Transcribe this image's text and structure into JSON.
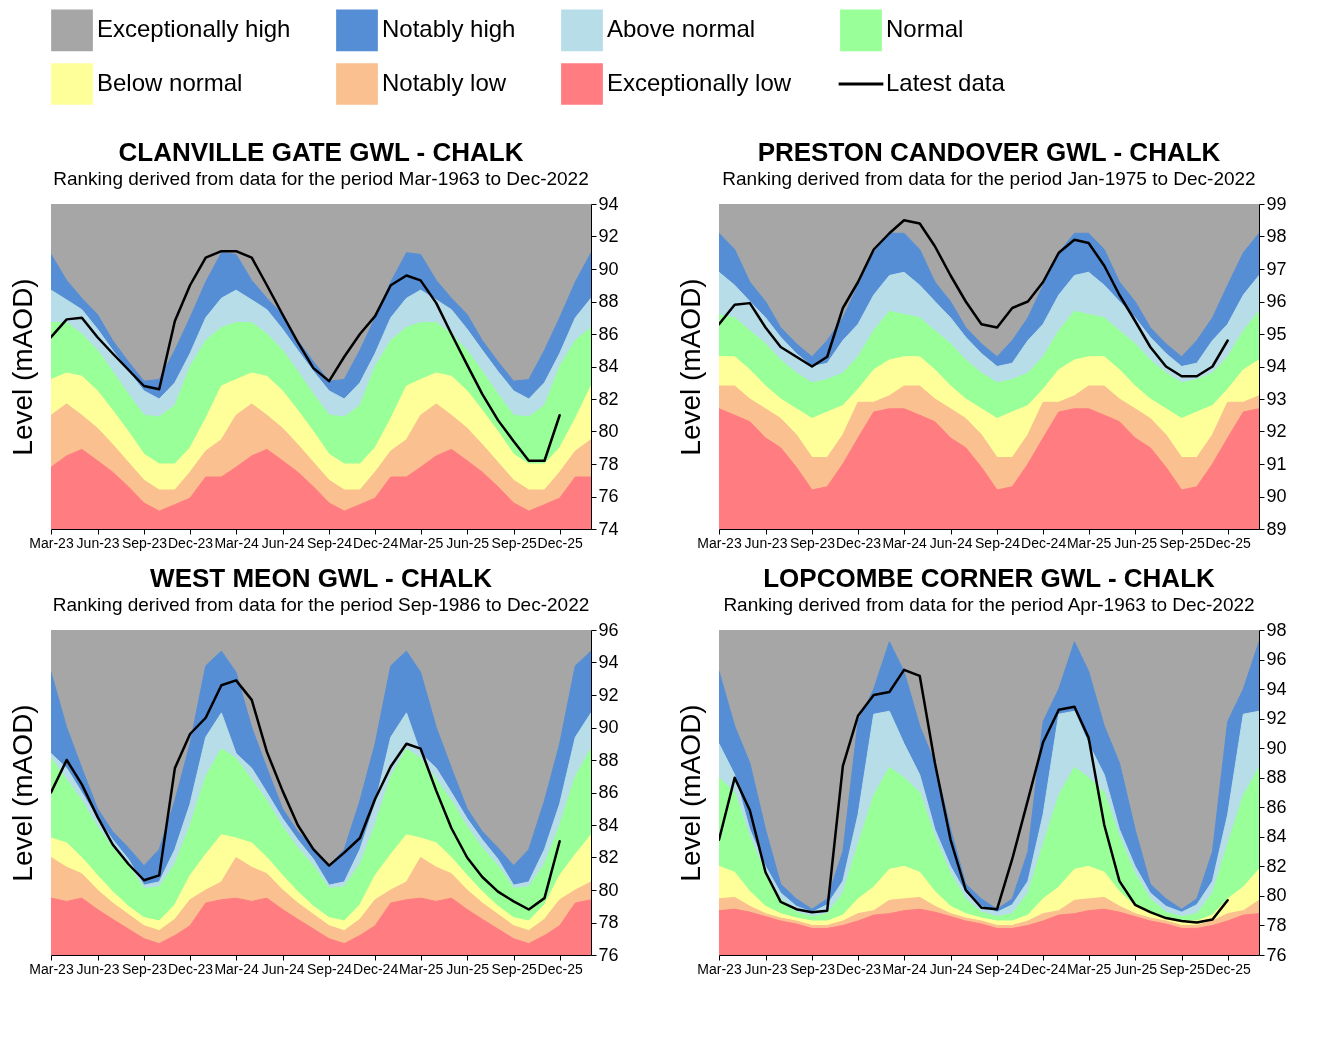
{
  "chart_data": [
    {
      "type": "area",
      "legend": "top",
      "title": "CLANVILLE GATE GWL - CHALK",
      "subtitle": "Ranking derived from data for the period Mar-1963 to Dec-2022",
      "ylabel": "Level (mAOD)",
      "x": [
        "2023-03",
        "2023-04",
        "2023-05",
        "2023-06",
        "2023-07",
        "2023-08",
        "2023-09",
        "2023-10",
        "2023-11",
        "2023-12",
        "2024-01",
        "2024-02",
        "2024-03",
        "2024-04",
        "2024-05",
        "2024-06",
        "2024-07",
        "2024-08",
        "2024-09",
        "2024-10",
        "2024-11",
        "2024-12",
        "2025-01",
        "2025-02",
        "2025-03",
        "2025-04",
        "2025-05",
        "2025-06",
        "2025-07",
        "2025-08",
        "2025-09",
        "2025-10",
        "2025-11",
        "2025-12",
        "2026-01",
        "2026-02"
      ],
      "xlim": [
        "2023-03",
        "2026-02"
      ],
      "xticks": [
        {
          "value": "2023-03",
          "label": "Mar-23"
        },
        {
          "value": "2023-06",
          "label": "Jun-23"
        },
        {
          "value": "2023-09",
          "label": "Sep-23"
        },
        {
          "value": "2023-12",
          "label": "Dec-23"
        },
        {
          "value": "2024-03",
          "label": "Mar-24"
        },
        {
          "value": "2024-06",
          "label": "Jun-24"
        },
        {
          "value": "2024-09",
          "label": "Sep-24"
        },
        {
          "value": "2024-12",
          "label": "Dec-24"
        },
        {
          "value": "2025-03",
          "label": "Mar-25"
        },
        {
          "value": "2025-06",
          "label": "Jun-25"
        },
        {
          "value": "2025-09",
          "label": "Sep-25"
        },
        {
          "value": "2025-12",
          "label": "Dec-25"
        }
      ],
      "ylim": [
        74,
        94
      ],
      "yticks": [
        74,
        76,
        78,
        80,
        82,
        84,
        86,
        88,
        90,
        92,
        94
      ],
      "series": [
        {
          "name": "Exceptionally low",
          "color": "#ff7c80",
          "values": [
            77.8,
            78.5,
            78.9,
            78.2,
            77.5,
            76.6,
            75.6,
            75.1,
            75.5,
            75.9,
            77.2,
            77.2,
            77.8,
            78.5,
            78.9,
            78.2,
            77.5,
            76.6,
            75.6,
            75.1,
            75.5,
            75.9,
            77.2,
            77.2,
            77.8,
            78.5,
            78.9,
            78.2,
            77.5,
            76.6,
            75.6,
            75.1,
            75.5,
            75.9,
            77.2,
            77.2
          ]
        },
        {
          "name": "Notably low",
          "color": "#fac090",
          "values": [
            81.0,
            81.7,
            81.0,
            80.2,
            79.2,
            78.1,
            77.0,
            76.4,
            76.4,
            77.5,
            78.8,
            79.5,
            81.0,
            81.7,
            81.0,
            80.2,
            79.2,
            78.1,
            77.0,
            76.4,
            76.4,
            77.5,
            78.8,
            79.5,
            81.0,
            81.7,
            81.0,
            80.2,
            79.2,
            78.1,
            77.0,
            76.4,
            76.4,
            77.5,
            78.8,
            79.5
          ]
        },
        {
          "name": "Below normal",
          "color": "#ffff99",
          "values": [
            83.2,
            83.6,
            83.4,
            82.5,
            81.3,
            80.0,
            78.6,
            78.0,
            78.0,
            79.0,
            80.8,
            82.8,
            83.2,
            83.6,
            83.4,
            82.5,
            81.3,
            80.0,
            78.6,
            78.0,
            78.0,
            79.0,
            80.8,
            82.8,
            83.2,
            83.6,
            83.4,
            82.5,
            81.3,
            80.0,
            78.6,
            78.0,
            78.0,
            79.0,
            80.8,
            82.8
          ]
        },
        {
          "name": "Normal",
          "color": "#99ff99",
          "values": [
            86.7,
            86.7,
            86.0,
            85.0,
            83.7,
            82.3,
            81.0,
            80.9,
            81.6,
            84.0,
            85.6,
            86.4,
            86.7,
            86.7,
            86.0,
            85.0,
            83.7,
            82.3,
            81.0,
            80.9,
            81.6,
            84.0,
            85.6,
            86.4,
            86.7,
            86.7,
            86.0,
            85.0,
            83.7,
            82.3,
            81.0,
            80.9,
            81.6,
            84.0,
            85.6,
            86.4
          ]
        },
        {
          "name": "Above normal",
          "color": "#b7dde8",
          "values": [
            88.7,
            88.1,
            87.5,
            86.3,
            85.0,
            83.7,
            82.5,
            82.0,
            83.0,
            84.8,
            87.0,
            88.2,
            88.7,
            88.1,
            87.5,
            86.3,
            85.0,
            83.7,
            82.5,
            82.0,
            83.0,
            84.8,
            87.0,
            88.2,
            88.7,
            88.1,
            87.5,
            86.3,
            85.0,
            83.7,
            82.5,
            82.0,
            83.0,
            84.8,
            87.0,
            88.2
          ]
        },
        {
          "name": "Notably high",
          "color": "#558ed5",
          "values": [
            90.9,
            89.3,
            88.2,
            87.2,
            85.6,
            84.3,
            83.1,
            83.2,
            85.0,
            87.0,
            89.2,
            91.0,
            90.9,
            89.3,
            88.2,
            87.2,
            85.6,
            84.3,
            83.1,
            83.2,
            85.0,
            87.0,
            89.2,
            91.0,
            90.9,
            89.3,
            88.2,
            87.2,
            85.6,
            84.3,
            83.1,
            83.2,
            85.0,
            87.0,
            89.2,
            91.0
          ]
        },
        {
          "name": "Exceptionally high",
          "color": "#a6a6a6",
          "values": [
            94,
            94,
            94,
            94,
            94,
            94,
            94,
            94,
            94,
            94,
            94,
            94,
            94,
            94,
            94,
            94,
            94,
            94,
            94,
            94,
            94,
            94,
            94,
            94,
            94,
            94,
            94,
            94,
            94,
            94,
            94,
            94,
            94,
            94,
            94,
            94
          ]
        },
        {
          "name": "Latest data",
          "type": "line",
          "color": "#000000",
          "x": [
            "2023-03",
            "2023-04",
            "2023-05",
            "2023-06",
            "2023-07",
            "2023-08",
            "2023-09",
            "2023-10",
            "2023-11",
            "2023-12",
            "2024-01",
            "2024-02",
            "2024-03",
            "2024-04",
            "2024-05",
            "2024-06",
            "2024-07",
            "2024-08",
            "2024-09",
            "2024-10",
            "2024-11",
            "2024-12",
            "2025-01",
            "2025-02",
            "2025-03",
            "2025-04",
            "2025-05",
            "2025-06",
            "2025-07",
            "2025-08",
            "2025-09",
            "2025-10",
            "2025-11",
            "2025-12"
          ],
          "values": [
            85.8,
            86.9,
            87.0,
            85.8,
            84.8,
            83.8,
            82.8,
            82.6,
            86.8,
            89.0,
            90.7,
            91.1,
            91.1,
            90.7,
            89.0,
            87.2,
            85.5,
            83.9,
            83.1,
            84.6,
            86.0,
            87.1,
            89.0,
            89.6,
            89.3,
            87.9,
            86.0,
            84.1,
            82.3,
            80.7,
            79.4,
            78.2,
            78.2,
            81.0
          ]
        }
      ]
    },
    {
      "type": "area",
      "title": "PRESTON CANDOVER GWL - CHALK",
      "subtitle": "Ranking derived from data for the period Jan-1975 to Dec-2022",
      "ylabel": "Level (mAOD)",
      "x": [
        "2023-03",
        "2023-04",
        "2023-05",
        "2023-06",
        "2023-07",
        "2023-08",
        "2023-09",
        "2023-10",
        "2023-11",
        "2023-12",
        "2024-01",
        "2024-02",
        "2024-03",
        "2024-04",
        "2024-05",
        "2024-06",
        "2024-07",
        "2024-08",
        "2024-09",
        "2024-10",
        "2024-11",
        "2024-12",
        "2025-01",
        "2025-02",
        "2025-03",
        "2025-04",
        "2025-05",
        "2025-06",
        "2025-07",
        "2025-08",
        "2025-09",
        "2025-10",
        "2025-11",
        "2025-12",
        "2026-01",
        "2026-02"
      ],
      "xlim": [
        "2023-03",
        "2026-02"
      ],
      "xticks": [
        {
          "value": "2023-03",
          "label": "Mar-23"
        },
        {
          "value": "2023-06",
          "label": "Jun-23"
        },
        {
          "value": "2023-09",
          "label": "Sep-23"
        },
        {
          "value": "2023-12",
          "label": "Dec-23"
        },
        {
          "value": "2024-03",
          "label": "Mar-24"
        },
        {
          "value": "2024-06",
          "label": "Jun-24"
        },
        {
          "value": "2024-09",
          "label": "Sep-24"
        },
        {
          "value": "2024-12",
          "label": "Dec-24"
        },
        {
          "value": "2025-03",
          "label": "Mar-25"
        },
        {
          "value": "2025-06",
          "label": "Jun-25"
        },
        {
          "value": "2025-09",
          "label": "Sep-25"
        },
        {
          "value": "2025-12",
          "label": "Dec-25"
        }
      ],
      "ylim": [
        89,
        99
      ],
      "yticks": [
        89,
        90,
        91,
        92,
        93,
        94,
        95,
        96,
        97,
        98,
        99
      ],
      "series": [
        {
          "name": "Exceptionally low",
          "color": "#ff7c80",
          "values": [
            92.7,
            92.5,
            92.3,
            91.8,
            91.5,
            90.9,
            90.2,
            90.3,
            91.0,
            91.8,
            92.6,
            92.7,
            92.7,
            92.5,
            92.3,
            91.8,
            91.5,
            90.9,
            90.2,
            90.3,
            91.0,
            91.8,
            92.6,
            92.7,
            92.7,
            92.5,
            92.3,
            91.8,
            91.5,
            90.9,
            90.2,
            90.3,
            91.0,
            91.8,
            92.6,
            92.7
          ]
        },
        {
          "name": "Notably low",
          "color": "#fac090",
          "values": [
            93.4,
            93.4,
            93.0,
            92.7,
            92.4,
            91.9,
            91.2,
            91.2,
            91.9,
            92.9,
            92.9,
            93.1,
            93.4,
            93.4,
            93.0,
            92.7,
            92.4,
            91.9,
            91.2,
            91.2,
            91.9,
            92.9,
            92.9,
            93.1,
            93.4,
            93.4,
            93.0,
            92.7,
            92.4,
            91.9,
            91.2,
            91.2,
            91.9,
            92.9,
            92.9,
            93.1
          ]
        },
        {
          "name": "Below normal",
          "color": "#ffff99",
          "values": [
            94.3,
            94.3,
            93.9,
            93.4,
            93.0,
            92.7,
            92.4,
            92.6,
            92.8,
            93.3,
            93.9,
            94.2,
            94.3,
            94.3,
            93.9,
            93.4,
            93.0,
            92.7,
            92.4,
            92.6,
            92.8,
            93.3,
            93.9,
            94.2,
            94.3,
            94.3,
            93.9,
            93.4,
            93.0,
            92.7,
            92.4,
            92.6,
            92.8,
            93.3,
            93.9,
            94.2
          ]
        },
        {
          "name": "Normal",
          "color": "#99ff99",
          "values": [
            95.6,
            95.5,
            95.1,
            94.7,
            94.2,
            93.8,
            93.5,
            93.6,
            93.8,
            94.3,
            95.1,
            95.7,
            95.6,
            95.5,
            95.1,
            94.7,
            94.2,
            93.8,
            93.5,
            93.6,
            93.8,
            94.3,
            95.1,
            95.7,
            95.6,
            95.5,
            95.1,
            94.7,
            94.2,
            93.8,
            93.5,
            93.6,
            93.8,
            94.3,
            95.1,
            95.7
          ]
        },
        {
          "name": "Above normal",
          "color": "#b7dde8",
          "values": [
            96.9,
            96.5,
            96.0,
            95.5,
            94.9,
            94.4,
            94.0,
            94.1,
            94.8,
            95.3,
            96.2,
            96.8,
            96.9,
            96.5,
            96.0,
            95.5,
            94.9,
            94.4,
            94.0,
            94.1,
            94.8,
            95.3,
            96.2,
            96.8,
            96.9,
            96.5,
            96.0,
            95.5,
            94.9,
            94.4,
            94.0,
            94.1,
            94.8,
            95.3,
            96.2,
            96.8
          ]
        },
        {
          "name": "Notably high",
          "color": "#558ed5",
          "values": [
            98.1,
            97.6,
            96.6,
            96.0,
            95.2,
            94.7,
            94.3,
            94.8,
            95.5,
            96.5,
            97.5,
            98.1,
            98.1,
            97.6,
            96.6,
            96.0,
            95.2,
            94.7,
            94.3,
            94.8,
            95.5,
            96.5,
            97.5,
            98.1,
            98.1,
            97.6,
            96.6,
            96.0,
            95.2,
            94.7,
            94.3,
            94.8,
            95.5,
            96.5,
            97.5,
            98.1
          ]
        },
        {
          "name": "Exceptionally high",
          "color": "#a6a6a6",
          "values": [
            99,
            99,
            99,
            99,
            99,
            99,
            99,
            99,
            99,
            99,
            99,
            99,
            99,
            99,
            99,
            99,
            99,
            99,
            99,
            99,
            99,
            99,
            99,
            99,
            99,
            99,
            99,
            99,
            99,
            99,
            99,
            99,
            99,
            99,
            99,
            99
          ]
        },
        {
          "name": "Latest data",
          "type": "line",
          "color": "#000000",
          "x": [
            "2023-03",
            "2023-04",
            "2023-05",
            "2023-06",
            "2023-07",
            "2023-08",
            "2023-09",
            "2023-10",
            "2023-11",
            "2023-12",
            "2024-01",
            "2024-02",
            "2024-03",
            "2024-04",
            "2024-05",
            "2024-06",
            "2024-07",
            "2024-08",
            "2024-09",
            "2024-10",
            "2024-11",
            "2024-12",
            "2025-01",
            "2025-02",
            "2025-03",
            "2025-04",
            "2025-05",
            "2025-06",
            "2025-07",
            "2025-08",
            "2025-09",
            "2025-10",
            "2025-11",
            "2025-12"
          ],
          "values": [
            95.3,
            95.9,
            95.95,
            95.2,
            94.6,
            94.3,
            94.0,
            94.3,
            95.8,
            96.6,
            97.6,
            98.1,
            98.5,
            98.4,
            97.7,
            96.8,
            96.0,
            95.3,
            95.2,
            95.8,
            96.0,
            96.6,
            97.5,
            97.9,
            97.8,
            97.1,
            96.2,
            95.4,
            94.6,
            94.0,
            93.7,
            93.7,
            94.0,
            94.8
          ]
        }
      ]
    },
    {
      "type": "area",
      "title": "WEST MEON GWL - CHALK",
      "subtitle": "Ranking derived from data for the period Sep-1986 to Dec-2022",
      "ylabel": "Level (mAOD)",
      "x": [
        "2023-03",
        "2023-04",
        "2023-05",
        "2023-06",
        "2023-07",
        "2023-08",
        "2023-09",
        "2023-10",
        "2023-11",
        "2023-12",
        "2024-01",
        "2024-02",
        "2024-03",
        "2024-04",
        "2024-05",
        "2024-06",
        "2024-07",
        "2024-08",
        "2024-09",
        "2024-10",
        "2024-11",
        "2024-12",
        "2025-01",
        "2025-02",
        "2025-03",
        "2025-04",
        "2025-05",
        "2025-06",
        "2025-07",
        "2025-08",
        "2025-09",
        "2025-10",
        "2025-11",
        "2025-12",
        "2026-01",
        "2026-02"
      ],
      "xlim": [
        "2023-03",
        "2026-02"
      ],
      "xticks": [
        {
          "value": "2023-03",
          "label": "Mar-23"
        },
        {
          "value": "2023-06",
          "label": "Jun-23"
        },
        {
          "value": "2023-09",
          "label": "Sep-23"
        },
        {
          "value": "2023-12",
          "label": "Dec-23"
        },
        {
          "value": "2024-03",
          "label": "Mar-24"
        },
        {
          "value": "2024-06",
          "label": "Jun-24"
        },
        {
          "value": "2024-09",
          "label": "Sep-24"
        },
        {
          "value": "2024-12",
          "label": "Dec-24"
        },
        {
          "value": "2025-03",
          "label": "Mar-25"
        },
        {
          "value": "2025-06",
          "label": "Jun-25"
        },
        {
          "value": "2025-09",
          "label": "Sep-25"
        },
        {
          "value": "2025-12",
          "label": "Dec-25"
        }
      ],
      "ylim": [
        76,
        96
      ],
      "yticks": [
        76,
        78,
        80,
        82,
        84,
        86,
        88,
        90,
        92,
        94,
        96
      ],
      "series": [
        {
          "name": "Exceptionally low",
          "color": "#ff7c80",
          "values": [
            79.5,
            79.3,
            79.5,
            78.8,
            78.2,
            77.6,
            77.0,
            76.7,
            77.2,
            77.8,
            79.2,
            79.4,
            79.5,
            79.3,
            79.5,
            78.8,
            78.2,
            77.6,
            77.0,
            76.7,
            77.2,
            77.8,
            79.2,
            79.4,
            79.5,
            79.3,
            79.5,
            78.8,
            78.2,
            77.6,
            77.0,
            76.7,
            77.2,
            77.8,
            79.2,
            79.4
          ]
        },
        {
          "name": "Notably low",
          "color": "#fac090",
          "values": [
            82.0,
            81.4,
            81.0,
            80.0,
            79.2,
            78.5,
            77.8,
            77.5,
            78.2,
            79.4,
            80.0,
            80.5,
            82.0,
            81.4,
            81.0,
            80.0,
            79.2,
            78.5,
            77.8,
            77.5,
            78.2,
            79.4,
            80.0,
            80.5,
            82.0,
            81.4,
            81.0,
            80.0,
            79.2,
            78.5,
            77.8,
            77.5,
            78.2,
            79.4,
            80.0,
            80.5
          ]
        },
        {
          "name": "Below normal",
          "color": "#ffff99",
          "values": [
            83.2,
            82.9,
            82.0,
            80.9,
            79.9,
            79.0,
            78.3,
            78.1,
            79.1,
            80.9,
            82.2,
            83.4,
            83.2,
            82.9,
            82.0,
            80.9,
            79.9,
            79.0,
            78.3,
            78.1,
            79.1,
            80.9,
            82.2,
            83.4,
            83.2,
            82.9,
            82.0,
            80.9,
            79.9,
            79.0,
            78.3,
            78.1,
            79.1,
            80.9,
            82.2,
            83.4
          ]
        },
        {
          "name": "Normal",
          "color": "#99ff99",
          "values": [
            88.1,
            86.8,
            85.5,
            83.9,
            82.6,
            81.5,
            80.1,
            80.2,
            81.6,
            84.0,
            87.0,
            88.7,
            88.1,
            86.8,
            85.5,
            83.9,
            82.6,
            81.5,
            80.1,
            80.2,
            81.6,
            84.0,
            87.0,
            88.7,
            88.1,
            86.8,
            85.5,
            83.9,
            82.6,
            81.5,
            80.1,
            80.2,
            81.6,
            84.0,
            87.0,
            88.7
          ]
        },
        {
          "name": "Above normal",
          "color": "#b7dde8",
          "values": [
            88.4,
            87.5,
            86.0,
            84.4,
            83.1,
            81.9,
            80.3,
            80.5,
            82.5,
            85.3,
            89.4,
            90.9,
            88.4,
            87.5,
            86.0,
            84.4,
            83.1,
            81.9,
            80.3,
            80.5,
            82.5,
            85.3,
            89.4,
            90.9,
            88.4,
            87.5,
            86.0,
            84.4,
            83.1,
            81.9,
            80.3,
            80.5,
            82.5,
            85.3,
            89.4,
            90.9
          ]
        },
        {
          "name": "Notably high",
          "color": "#558ed5",
          "values": [
            93.4,
            90.0,
            87.5,
            85.0,
            83.6,
            82.6,
            81.5,
            82.5,
            85.5,
            89.0,
            93.8,
            94.7,
            93.4,
            90.0,
            87.5,
            85.0,
            83.6,
            82.6,
            81.5,
            82.5,
            85.5,
            89.0,
            93.8,
            94.7,
            93.4,
            90.0,
            87.5,
            85.0,
            83.6,
            82.6,
            81.5,
            82.5,
            85.5,
            89.0,
            93.8,
            94.7
          ]
        },
        {
          "name": "Exceptionally high",
          "color": "#a6a6a6",
          "values": [
            96,
            96,
            96,
            96,
            96,
            96,
            96,
            96,
            96,
            96,
            96,
            96,
            96,
            96,
            96,
            96,
            96,
            96,
            96,
            96,
            96,
            96,
            96,
            96,
            96,
            96,
            96,
            96,
            96,
            96,
            96,
            96,
            96,
            96,
            96,
            96
          ]
        },
        {
          "name": "Latest data",
          "type": "line",
          "color": "#000000",
          "x": [
            "2023-03",
            "2023-04",
            "2023-05",
            "2023-06",
            "2023-07",
            "2023-08",
            "2023-09",
            "2023-10",
            "2023-11",
            "2023-12",
            "2024-01",
            "2024-02",
            "2024-03",
            "2024-04",
            "2024-05",
            "2024-06",
            "2024-07",
            "2024-08",
            "2024-09",
            "2024-10",
            "2024-11",
            "2024-12",
            "2025-01",
            "2025-02",
            "2025-03",
            "2025-04",
            "2025-05",
            "2025-06",
            "2025-07",
            "2025-08",
            "2025-09",
            "2025-10",
            "2025-11",
            "2025-12"
          ],
          "values": [
            86.0,
            88.0,
            86.5,
            84.5,
            82.8,
            81.6,
            80.6,
            80.9,
            87.5,
            89.6,
            90.6,
            92.6,
            92.9,
            91.7,
            88.5,
            86.1,
            84.0,
            82.5,
            81.5,
            82.3,
            83.2,
            85.6,
            87.6,
            89.0,
            88.7,
            86.1,
            83.8,
            82.0,
            80.8,
            79.9,
            79.3,
            78.8,
            79.5,
            83.0
          ]
        }
      ]
    },
    {
      "type": "area",
      "title": "LOPCOMBE CORNER GWL - CHALK",
      "subtitle": "Ranking derived from data for the period Apr-1963 to Dec-2022",
      "ylabel": "Level (mAOD)",
      "x": [
        "2023-03",
        "2023-04",
        "2023-05",
        "2023-06",
        "2023-07",
        "2023-08",
        "2023-09",
        "2023-10",
        "2023-11",
        "2023-12",
        "2024-01",
        "2024-02",
        "2024-03",
        "2024-04",
        "2024-05",
        "2024-06",
        "2024-07",
        "2024-08",
        "2024-09",
        "2024-10",
        "2024-11",
        "2024-12",
        "2025-01",
        "2025-02",
        "2025-03",
        "2025-04",
        "2025-05",
        "2025-06",
        "2025-07",
        "2025-08",
        "2025-09",
        "2025-10",
        "2025-11",
        "2025-12",
        "2026-01",
        "2026-02"
      ],
      "xlim": [
        "2023-03",
        "2026-02"
      ],
      "xticks": [
        {
          "value": "2023-03",
          "label": "Mar-23"
        },
        {
          "value": "2023-06",
          "label": "Jun-23"
        },
        {
          "value": "2023-09",
          "label": "Sep-23"
        },
        {
          "value": "2023-12",
          "label": "Dec-23"
        },
        {
          "value": "2024-03",
          "label": "Mar-24"
        },
        {
          "value": "2024-06",
          "label": "Jun-24"
        },
        {
          "value": "2024-09",
          "label": "Sep-24"
        },
        {
          "value": "2024-12",
          "label": "Dec-24"
        },
        {
          "value": "2025-03",
          "label": "Mar-25"
        },
        {
          "value": "2025-06",
          "label": "Jun-25"
        },
        {
          "value": "2025-09",
          "label": "Sep-25"
        },
        {
          "value": "2025-12",
          "label": "Dec-25"
        }
      ],
      "ylim": [
        76,
        98
      ],
      "yticks": [
        76,
        78,
        80,
        82,
        84,
        86,
        88,
        90,
        92,
        94,
        96,
        98
      ],
      "series": [
        {
          "name": "Exceptionally low",
          "color": "#ff7c80",
          "values": [
            79.0,
            79.1,
            78.9,
            78.6,
            78.3,
            78.1,
            77.8,
            77.8,
            78.0,
            78.3,
            78.7,
            78.8,
            79.0,
            79.1,
            78.9,
            78.6,
            78.3,
            78.1,
            77.8,
            77.8,
            78.0,
            78.3,
            78.7,
            78.8,
            79.0,
            79.1,
            78.9,
            78.6,
            78.3,
            78.1,
            77.8,
            77.8,
            78.0,
            78.3,
            78.7,
            78.8
          ]
        },
        {
          "name": "Notably low",
          "color": "#fac090",
          "values": [
            79.8,
            79.9,
            79.3,
            78.8,
            78.5,
            78.3,
            78.0,
            78.0,
            78.3,
            78.8,
            79.0,
            79.7,
            79.8,
            79.9,
            79.3,
            78.8,
            78.5,
            78.3,
            78.0,
            78.0,
            78.3,
            78.8,
            79.0,
            79.7,
            79.8,
            79.9,
            79.3,
            78.8,
            78.5,
            78.3,
            78.0,
            78.0,
            78.3,
            78.8,
            79.0,
            79.7
          ]
        },
        {
          "name": "Below normal",
          "color": "#ffff99",
          "values": [
            82.0,
            81.6,
            80.3,
            79.3,
            78.8,
            78.5,
            78.3,
            78.3,
            78.7,
            79.8,
            80.6,
            81.8,
            82.0,
            81.6,
            80.3,
            79.3,
            78.8,
            78.5,
            78.3,
            78.3,
            78.7,
            79.8,
            80.6,
            81.8,
            82.0,
            81.6,
            80.3,
            79.3,
            78.8,
            78.5,
            78.3,
            78.3,
            78.7,
            79.8,
            80.6,
            81.8
          ]
        },
        {
          "name": "Normal",
          "color": "#99ff99",
          "values": [
            88.0,
            87.0,
            84.0,
            81.5,
            79.8,
            78.9,
            78.6,
            78.8,
            80.2,
            83.5,
            86.8,
            88.7,
            88.0,
            87.0,
            84.0,
            81.5,
            79.8,
            78.9,
            78.6,
            78.8,
            80.2,
            83.5,
            86.8,
            88.7,
            88.0,
            87.0,
            84.0,
            81.5,
            79.8,
            78.9,
            78.6,
            78.8,
            80.2,
            83.5,
            86.8,
            88.7
          ]
        },
        {
          "name": "Above normal",
          "color": "#b7dde8",
          "values": [
            90.3,
            88.2,
            84.5,
            82.0,
            80.2,
            79.3,
            78.9,
            79.4,
            81.0,
            85.5,
            92.3,
            92.5,
            90.3,
            88.2,
            84.5,
            82.0,
            80.2,
            79.3,
            78.9,
            79.4,
            81.0,
            85.5,
            92.3,
            92.5,
            90.3,
            88.2,
            84.5,
            82.0,
            80.2,
            79.3,
            78.9,
            79.4,
            81.0,
            85.5,
            92.3,
            92.5
          ]
        },
        {
          "name": "Notably high",
          "color": "#558ed5",
          "values": [
            95.2,
            91.5,
            89.0,
            84.5,
            80.8,
            79.8,
            79.1,
            79.8,
            83.0,
            91.8,
            94.0,
            97.2,
            95.2,
            91.5,
            89.0,
            84.5,
            80.8,
            79.8,
            79.1,
            79.8,
            83.0,
            91.8,
            94.0,
            97.2,
            95.2,
            91.5,
            89.0,
            84.5,
            80.8,
            79.8,
            79.1,
            79.8,
            83.0,
            91.8,
            94.0,
            97.2
          ]
        },
        {
          "name": "Exceptionally high",
          "color": "#a6a6a6",
          "values": [
            98,
            98,
            98,
            98,
            98,
            98,
            98,
            98,
            98,
            98,
            98,
            98,
            98,
            98,
            98,
            98,
            98,
            98,
            98,
            98,
            98,
            98,
            98,
            98,
            98,
            98,
            98,
            98,
            98,
            98,
            98,
            98,
            98,
            98,
            98,
            98
          ]
        },
        {
          "name": "Latest data",
          "type": "line",
          "color": "#000000",
          "x": [
            "2023-03",
            "2023-04",
            "2023-05",
            "2023-06",
            "2023-07",
            "2023-08",
            "2023-09",
            "2023-10",
            "2023-11",
            "2023-12",
            "2024-01",
            "2024-02",
            "2024-03",
            "2024-04",
            "2024-05",
            "2024-06",
            "2024-07",
            "2024-08",
            "2024-09",
            "2024-10",
            "2024-11",
            "2024-12",
            "2025-01",
            "2025-02",
            "2025-03",
            "2025-04",
            "2025-05",
            "2025-06",
            "2025-07",
            "2025-08",
            "2025-09",
            "2025-10",
            "2025-11",
            "2025-12"
          ],
          "values": [
            83.8,
            88.0,
            85.8,
            81.6,
            79.6,
            79.1,
            78.9,
            79.0,
            88.8,
            92.2,
            93.6,
            93.8,
            95.3,
            94.9,
            89.0,
            83.8,
            80.4,
            79.2,
            79.1,
            82.5,
            86.5,
            90.4,
            92.6,
            92.8,
            90.7,
            84.8,
            81.0,
            79.4,
            78.9,
            78.5,
            78.3,
            78.2,
            78.4,
            79.7
          ]
        }
      ]
    }
  ]
}
